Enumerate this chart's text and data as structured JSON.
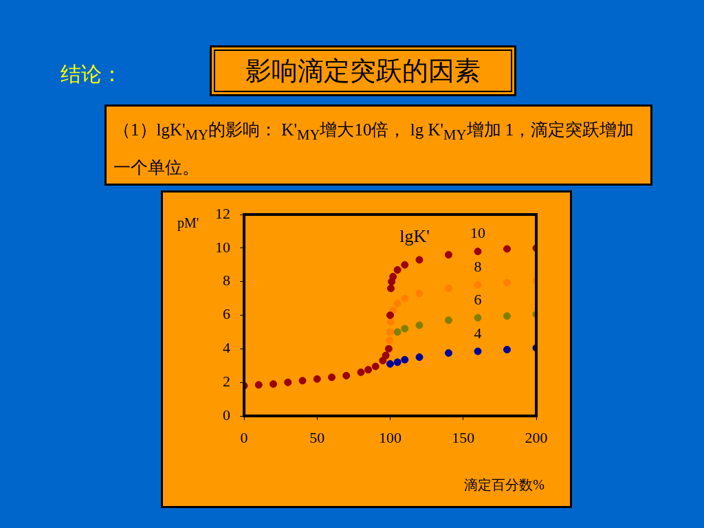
{
  "chart_data": {
    "type": "scatter",
    "title": "影响滴定突跃的因素",
    "subtitle": "（1）lgK'$_{MY}$的影响： K'$_{MY}$增大10倍， lg K'$_{MY}$增加 1，滴定突跃增加一个单位。",
    "annotations": [
      "结论："
    ],
    "xlabel": "滴定百分数%",
    "ylabel": "pM'",
    "legend_title": "lgK'",
    "legend": false,
    "grid": false,
    "marker": "circle",
    "xlim": [
      0,
      200
    ],
    "xticks": [
      0,
      50,
      100,
      150,
      200
    ],
    "ylim": [
      0,
      12
    ],
    "yticks": [
      0,
      2,
      4,
      6,
      8,
      10,
      12
    ],
    "series": [
      {
        "name": "10",
        "color": "#990000",
        "x": [
          0,
          10,
          20,
          30,
          40,
          50,
          60,
          70,
          80,
          85,
          90,
          95,
          97,
          99,
          100,
          100.5,
          101,
          102,
          105,
          110,
          120,
          140,
          160,
          180,
          200
        ],
        "values": [
          1.8,
          1.85,
          1.9,
          2.0,
          2.1,
          2.2,
          2.3,
          2.4,
          2.6,
          2.75,
          2.95,
          3.3,
          3.6,
          4.0,
          6.0,
          7.6,
          8.0,
          8.3,
          8.7,
          9.0,
          9.3,
          9.6,
          9.8,
          9.95,
          10.0
        ]
      },
      {
        "name": "8",
        "color": "#ff8000",
        "x": [
          99.5,
          100,
          100.5,
          102,
          105,
          110,
          120,
          140,
          160,
          180,
          200
        ],
        "values": [
          4.5,
          5.0,
          5.6,
          6.3,
          6.7,
          7.0,
          7.3,
          7.6,
          7.8,
          7.95,
          8.05
        ]
      },
      {
        "name": "6",
        "color": "#808000",
        "x": [
          105,
          110,
          120,
          140,
          160,
          180,
          200
        ],
        "values": [
          5.0,
          5.2,
          5.4,
          5.7,
          5.85,
          5.95,
          6.05
        ]
      },
      {
        "name": "4",
        "color": "#000099",
        "x": [
          100,
          105,
          110,
          120,
          140,
          160,
          180,
          200
        ],
        "values": [
          3.1,
          3.2,
          3.35,
          3.5,
          3.75,
          3.85,
          3.95,
          4.05
        ]
      }
    ]
  }
}
